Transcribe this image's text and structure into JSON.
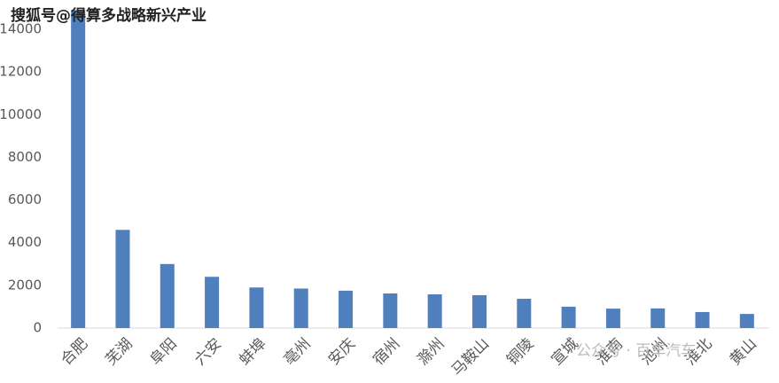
{
  "chart_data": {
    "type": "bar",
    "watermark": "搜狐号@得算多战略新兴产业",
    "watermark_bottom": "公众号 · 百车汽车",
    "categories": [
      "合肥",
      "芜湖",
      "阜阳",
      "六安",
      "蚌埠",
      "亳州",
      "安庆",
      "宿州",
      "滁州",
      "马鞍山",
      "铜陵",
      "宣城",
      "淮南",
      "池州",
      "淮北",
      "黄山"
    ],
    "values": [
      14900,
      4600,
      3000,
      2400,
      1900,
      1850,
      1750,
      1620,
      1580,
      1540,
      1370,
      1000,
      910,
      920,
      750,
      660
    ],
    "color": "#4f7fbd",
    "ylim": [
      0,
      15000
    ],
    "yticks": [
      0,
      2000,
      4000,
      6000,
      8000,
      10000,
      12000,
      14000
    ],
    "grid": false
  }
}
